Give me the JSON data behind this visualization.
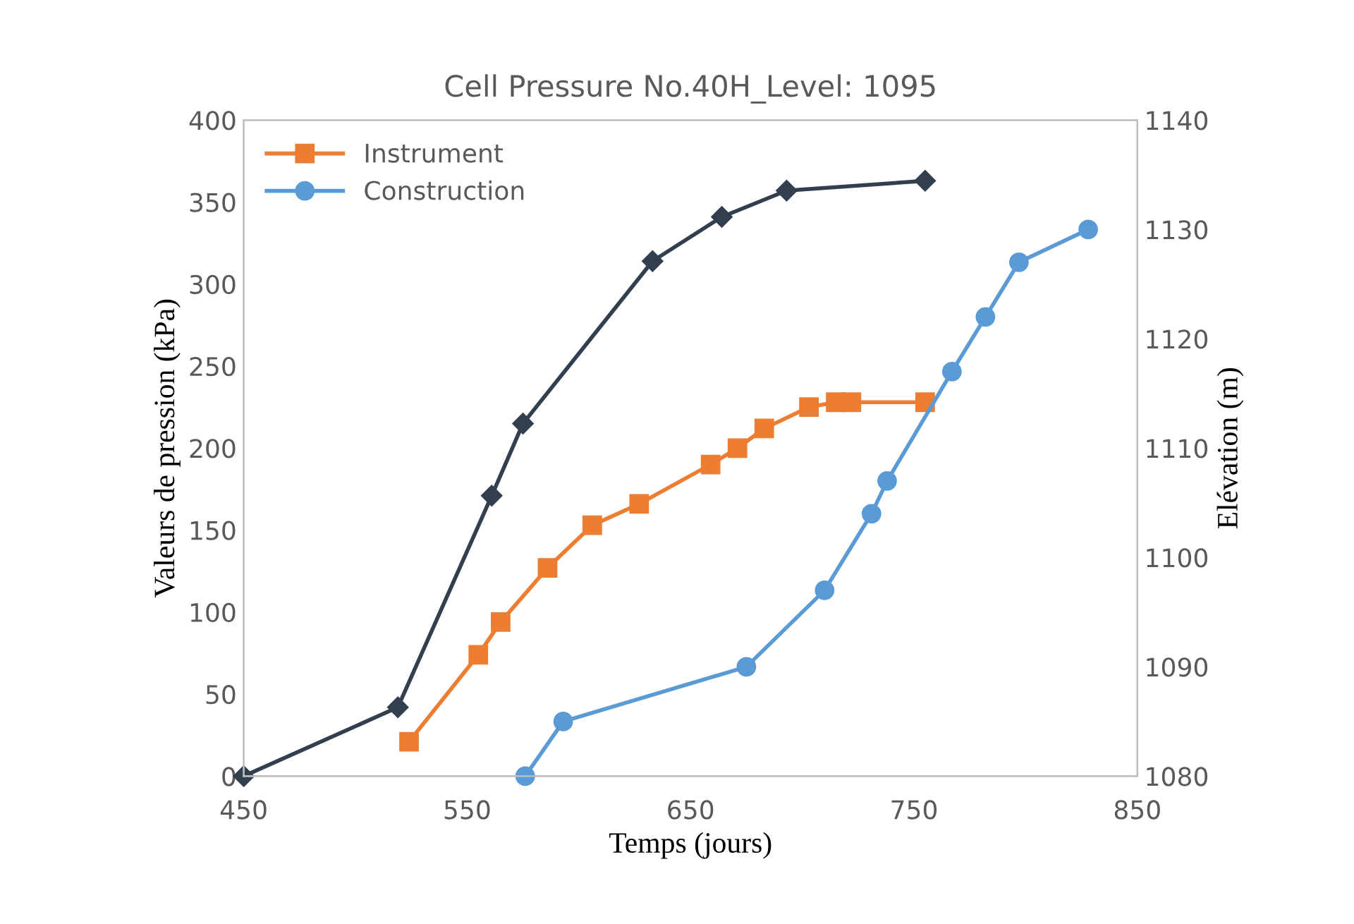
{
  "chart_data": {
    "type": "line",
    "title": "Cell Pressure No.40H_Level: 1095",
    "xlabel": "Temps (jours)",
    "ylabel": "Valeurs de pression (kPa)",
    "y2label": "Elévation (m)",
    "xlim": [
      450,
      850
    ],
    "xticks": [
      450,
      550,
      650,
      750,
      850
    ],
    "ylim": [
      0,
      400
    ],
    "yticks": [
      0,
      50,
      100,
      150,
      200,
      250,
      300,
      350,
      400
    ],
    "y2lim": [
      1080,
      1140
    ],
    "y2ticks": [
      1080,
      1090,
      1100,
      1110,
      1120,
      1130,
      1140
    ],
    "grid": false,
    "legend": "top left",
    "line_style": "solid",
    "series": [
      {
        "name": "Instrument",
        "color": "#ed7d31",
        "marker": "square",
        "x": [
          524,
          555,
          565,
          586,
          606,
          627,
          659,
          671,
          683,
          703,
          715,
          722,
          755
        ],
        "values": [
          21,
          74,
          94,
          127,
          153,
          166,
          190,
          200,
          212,
          225,
          228,
          228,
          228
        ]
      },
      {
        "color": "#323f4f",
        "marker": "diamond",
        "x": [
          450,
          519,
          561,
          575,
          633,
          664,
          693,
          755
        ],
        "values": [
          0,
          42,
          171,
          215,
          314,
          341,
          357,
          363
        ]
      },
      {
        "name": "Construction",
        "color": "#5b9bd5",
        "marker": "circle",
        "axis": "y2",
        "x": [
          576,
          593,
          675,
          710,
          731,
          738,
          767,
          782,
          797,
          828
        ],
        "values": [
          1080,
          1085,
          1090,
          1097,
          1104,
          1107,
          1117,
          1122,
          1127,
          1130
        ]
      }
    ]
  }
}
